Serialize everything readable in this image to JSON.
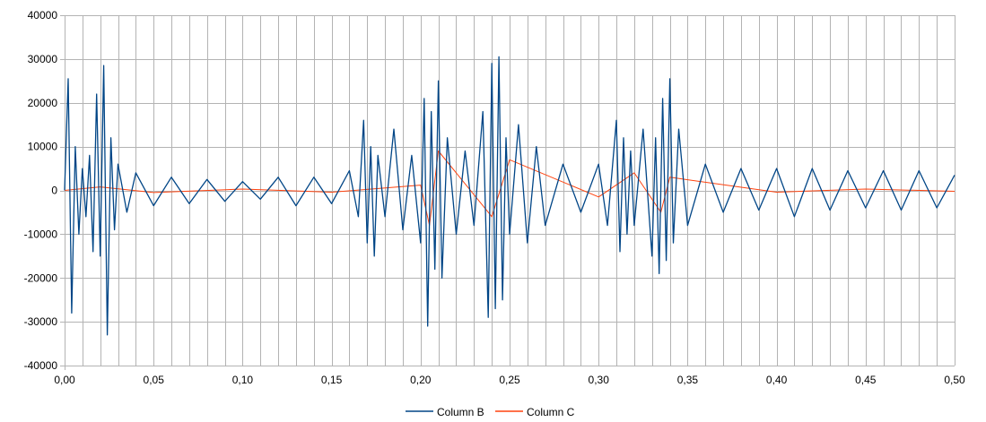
{
  "chart_data": {
    "type": "line",
    "title": "",
    "xlabel": "",
    "ylabel": "",
    "xlim": [
      0,
      0.5
    ],
    "ylim": [
      -40000,
      40000
    ],
    "x_ticks": [
      0,
      0.05,
      0.1,
      0.15,
      0.2,
      0.25,
      0.3,
      0.35,
      0.4,
      0.45,
      0.5
    ],
    "x_tick_labels": [
      "0,00",
      "0,05",
      "0,10",
      "0,15",
      "0,20",
      "0,25",
      "0,30",
      "0,35",
      "0,40",
      "0,45",
      "0,50"
    ],
    "y_ticks": [
      -40000,
      -30000,
      -20000,
      -10000,
      0,
      10000,
      20000,
      30000,
      40000
    ],
    "y_tick_labels": [
      "-40000",
      "-30000",
      "-20000",
      "-10000",
      "0",
      "10000",
      "20000",
      "30000",
      "40000"
    ],
    "x_minor_step": 0.01,
    "grid": true,
    "legend_position": "bottom",
    "series": [
      {
        "name": "Column B",
        "color": "#004586",
        "x": [
          0.0,
          0.002,
          0.004,
          0.006,
          0.008,
          0.01,
          0.012,
          0.014,
          0.016,
          0.018,
          0.02,
          0.022,
          0.024,
          0.026,
          0.028,
          0.03,
          0.035,
          0.04,
          0.05,
          0.06,
          0.07,
          0.08,
          0.09,
          0.1,
          0.11,
          0.12,
          0.13,
          0.14,
          0.15,
          0.16,
          0.165,
          0.168,
          0.17,
          0.172,
          0.174,
          0.176,
          0.18,
          0.185,
          0.19,
          0.195,
          0.2,
          0.202,
          0.204,
          0.206,
          0.208,
          0.21,
          0.212,
          0.215,
          0.22,
          0.225,
          0.23,
          0.235,
          0.238,
          0.24,
          0.242,
          0.244,
          0.246,
          0.248,
          0.25,
          0.255,
          0.26,
          0.265,
          0.27,
          0.28,
          0.29,
          0.3,
          0.305,
          0.31,
          0.312,
          0.314,
          0.316,
          0.318,
          0.32,
          0.325,
          0.33,
          0.332,
          0.334,
          0.336,
          0.338,
          0.34,
          0.342,
          0.345,
          0.35,
          0.36,
          0.37,
          0.38,
          0.39,
          0.4,
          0.41,
          0.42,
          0.43,
          0.44,
          0.45,
          0.46,
          0.47,
          0.48,
          0.49,
          0.5
        ],
        "y": [
          0,
          25500,
          -28000,
          10000,
          -10000,
          5000,
          -6000,
          8000,
          -14000,
          22000,
          -15000,
          28500,
          -33000,
          12000,
          -9000,
          6000,
          -5000,
          4000,
          -3500,
          3000,
          -3000,
          2500,
          -2500,
          2000,
          -2000,
          3000,
          -3500,
          3000,
          -3000,
          4500,
          -6000,
          16000,
          -12000,
          10000,
          -15000,
          8000,
          -6000,
          14000,
          -9000,
          8000,
          -12000,
          21000,
          -31000,
          18000,
          -18000,
          25000,
          -20000,
          12000,
          -10000,
          9000,
          -8000,
          18000,
          -29000,
          29000,
          -27000,
          30500,
          -25000,
          12000,
          -10000,
          15000,
          -12000,
          10000,
          -8000,
          6000,
          -5000,
          6000,
          -8000,
          16000,
          -14000,
          12000,
          -10000,
          9000,
          -8000,
          14000,
          -15000,
          12000,
          -19000,
          21000,
          -16000,
          25500,
          -12000,
          14000,
          -8000,
          6000,
          -5000,
          5000,
          -4500,
          5000,
          -6000,
          5000,
          -4500,
          4500,
          -4000,
          4500,
          -4500,
          4500,
          -4000,
          3500
        ]
      },
      {
        "name": "Column C",
        "color": "#ff420e",
        "x": [
          0.0,
          0.02,
          0.05,
          0.1,
          0.15,
          0.2,
          0.205,
          0.21,
          0.24,
          0.25,
          0.3,
          0.32,
          0.335,
          0.34,
          0.4,
          0.45,
          0.5
        ],
        "y": [
          0,
          800,
          -500,
          300,
          -400,
          1200,
          -8000,
          9000,
          -6000,
          7000,
          -1500,
          4000,
          -5000,
          3000,
          -400,
          300,
          -200
        ]
      }
    ]
  }
}
